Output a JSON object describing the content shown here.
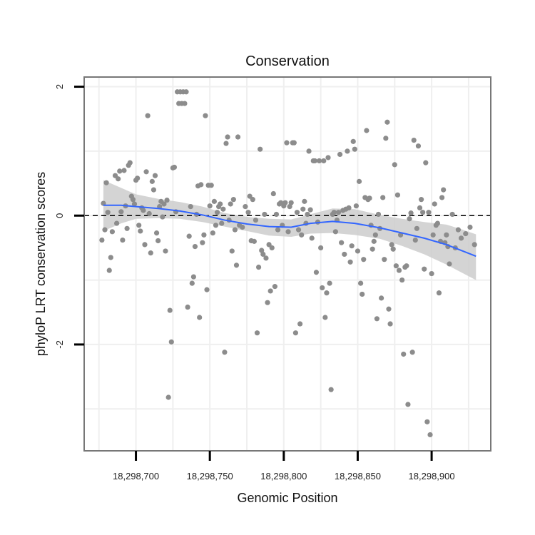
{
  "chart_data": {
    "type": "scatter",
    "title": "Conservation",
    "xlabel": "Genomic Position",
    "ylabel": "phyloP LRT conservation scores",
    "xlim": [
      18298665,
      18298940
    ],
    "ylim": [
      -3.65,
      2.15
    ],
    "x_ticks": [
      18298700,
      18298750,
      18298800,
      18298850,
      18298900
    ],
    "x_tick_labels": [
      "18,298,700",
      "18,298,750",
      "18,298,800",
      "18,298,850",
      "18,298,900"
    ],
    "y_ticks": [
      -2,
      0,
      2
    ],
    "y_tick_labels": [
      "-2",
      "0",
      "2"
    ],
    "grid": true,
    "reference_line": {
      "y": 0,
      "style": "dashed"
    },
    "colors": {
      "points": "#8c8c8c",
      "smooth_line": "#3366ff",
      "confidence_band": "#cccccc",
      "panel_border": "#777777",
      "grid": "#efefef"
    },
    "smooth": {
      "x": [
        18298678,
        18298690,
        18298700,
        18298715,
        18298730,
        18298745,
        18298760,
        18298775,
        18298790,
        18298805,
        18298818,
        18298833,
        18298848,
        18298865,
        18298880,
        18298895,
        18298910,
        18298920,
        18298930
      ],
      "y": [
        0.16,
        0.16,
        0.14,
        0.11,
        0.07,
        0.01,
        -0.07,
        -0.13,
        -0.17,
        -0.18,
        -0.12,
        -0.09,
        -0.12,
        -0.19,
        -0.27,
        -0.35,
        -0.45,
        -0.54,
        -0.63
      ],
      "lower": [
        -0.24,
        -0.12,
        -0.05,
        -0.04,
        -0.05,
        -0.1,
        -0.17,
        -0.24,
        -0.31,
        -0.33,
        -0.28,
        -0.27,
        -0.3,
        -0.36,
        -0.47,
        -0.6,
        -0.76,
        -0.88,
        -1.0
      ],
      "upper": [
        0.55,
        0.43,
        0.33,
        0.26,
        0.21,
        0.14,
        0.04,
        -0.02,
        -0.05,
        -0.06,
        0.02,
        0.11,
        0.1,
        0.01,
        -0.05,
        -0.1,
        -0.14,
        -0.21,
        -0.29
      ]
    },
    "points": [
      [
        18298677,
        -0.38
      ],
      [
        18298678,
        0.19
      ],
      [
        18298679,
        -0.22
      ],
      [
        18298680,
        0.51
      ],
      [
        18298681,
        0.05
      ],
      [
        18298682,
        -0.85
      ],
      [
        18298683,
        -0.65
      ],
      [
        18298684,
        -0.25
      ],
      [
        18298686,
        0.62
      ],
      [
        18298687,
        -0.12
      ],
      [
        18298688,
        0.57
      ],
      [
        18298689,
        0.69
      ],
      [
        18298690,
        0.06
      ],
      [
        18298691,
        -0.38
      ],
      [
        18298692,
        0.7
      ],
      [
        18298693,
        0.15
      ],
      [
        18298694,
        -0.2
      ],
      [
        18298695,
        0.78
      ],
      [
        18298696,
        0.82
      ],
      [
        18298697,
        0.3
      ],
      [
        18298698,
        0.25
      ],
      [
        18298699,
        0.18
      ],
      [
        18298700,
        0.55
      ],
      [
        18298701,
        0.58
      ],
      [
        18298702,
        -0.15
      ],
      [
        18298703,
        -0.24
      ],
      [
        18298704,
        0.12
      ],
      [
        18298705,
        0.08
      ],
      [
        18298706,
        -0.45
      ],
      [
        18298707,
        0.68
      ],
      [
        18298708,
        1.55
      ],
      [
        18298709,
        0.03
      ],
      [
        18298710,
        -0.58
      ],
      [
        18298711,
        0.53
      ],
      [
        18298712,
        0.4
      ],
      [
        18298713,
        0.62
      ],
      [
        18298714,
        -0.27
      ],
      [
        18298715,
        -0.39
      ],
      [
        18298716,
        0.14
      ],
      [
        18298717,
        0.22
      ],
      [
        18298718,
        -0.02
      ],
      [
        18298719,
        0.18
      ],
      [
        18298720,
        -0.55
      ],
      [
        18298721,
        0.24
      ],
      [
        18298722,
        -2.82
      ],
      [
        18298723,
        -1.47
      ],
      [
        18298724,
        -1.96
      ],
      [
        18298725,
        0.74
      ],
      [
        18298726,
        0.75
      ],
      [
        18298727,
        0.06
      ],
      [
        18298728,
        1.92
      ],
      [
        18298729,
        1.74
      ],
      [
        18298730,
        1.92
      ],
      [
        18298731,
        1.74
      ],
      [
        18298732,
        1.92
      ],
      [
        18298733,
        1.74
      ],
      [
        18298734,
        1.92
      ],
      [
        18298735,
        -1.42
      ],
      [
        18298736,
        -0.32
      ],
      [
        18298737,
        0.14
      ],
      [
        18298738,
        -1.05
      ],
      [
        18298739,
        -0.95
      ],
      [
        18298740,
        -0.48
      ],
      [
        18298741,
        0.02
      ],
      [
        18298742,
        0.46
      ],
      [
        18298743,
        -1.58
      ],
      [
        18298744,
        0.48
      ],
      [
        18298745,
        -0.42
      ],
      [
        18298746,
        -0.3
      ],
      [
        18298747,
        1.55
      ],
      [
        18298748,
        -1.15
      ],
      [
        18298749,
        0.47
      ],
      [
        18298750,
        0.15
      ],
      [
        18298751,
        0.47
      ],
      [
        18298752,
        -0.27
      ],
      [
        18298753,
        0.22
      ],
      [
        18298754,
        -0.15
      ],
      [
        18298755,
        0.05
      ],
      [
        18298756,
        0.14
      ],
      [
        18298757,
        0.18
      ],
      [
        18298758,
        -0.12
      ],
      [
        18298759,
        0.1
      ],
      [
        18298760,
        -2.12
      ],
      [
        18298761,
        1.12
      ],
      [
        18298762,
        1.22
      ],
      [
        18298763,
        -0.07
      ],
      [
        18298764,
        0.18
      ],
      [
        18298765,
        -0.55
      ],
      [
        18298766,
        0.25
      ],
      [
        18298767,
        -0.22
      ],
      [
        18298768,
        -0.77
      ],
      [
        18298769,
        1.22
      ],
      [
        18298770,
        -0.15
      ],
      [
        18298772,
        -0.18
      ],
      [
        18298774,
        0.14
      ],
      [
        18298776,
        0.05
      ],
      [
        18298777,
        0.3
      ],
      [
        18298778,
        -0.39
      ],
      [
        18298779,
        0.25
      ],
      [
        18298780,
        -0.4
      ],
      [
        18298781,
        -0.07
      ],
      [
        18298782,
        -1.82
      ],
      [
        18298783,
        -0.8
      ],
      [
        18298784,
        1.03
      ],
      [
        18298785,
        -0.54
      ],
      [
        18298786,
        -0.6
      ],
      [
        18298787,
        0.02
      ],
      [
        18298788,
        -0.66
      ],
      [
        18298789,
        -1.35
      ],
      [
        18298790,
        -0.45
      ],
      [
        18298791,
        -1.17
      ],
      [
        18298792,
        -0.5
      ],
      [
        18298793,
        0.34
      ],
      [
        18298794,
        -1.1
      ],
      [
        18298795,
        0.02
      ],
      [
        18298796,
        -0.22
      ],
      [
        18298797,
        0.18
      ],
      [
        18298798,
        0.2
      ],
      [
        18298799,
        -0.15
      ],
      [
        18298800,
        0.15
      ],
      [
        18298801,
        0.2
      ],
      [
        18298802,
        1.13
      ],
      [
        18298803,
        -0.25
      ],
      [
        18298804,
        0.14
      ],
      [
        18298805,
        0.2
      ],
      [
        18298806,
        1.13
      ],
      [
        18298807,
        1.13
      ],
      [
        18298808,
        -1.82
      ],
      [
        18298809,
        0.05
      ],
      [
        18298810,
        -0.22
      ],
      [
        18298811,
        -1.68
      ],
      [
        18298812,
        -0.3
      ],
      [
        18298813,
        0.1
      ],
      [
        18298814,
        0.22
      ],
      [
        18298815,
        -0.12
      ],
      [
        18298816,
        0.02
      ],
      [
        18298817,
        1.0
      ],
      [
        18298818,
        0.09
      ],
      [
        18298819,
        -0.35
      ],
      [
        18298820,
        0.85
      ],
      [
        18298821,
        0.85
      ],
      [
        18298822,
        -0.88
      ],
      [
        18298823,
        -0.1
      ],
      [
        18298824,
        0.85
      ],
      [
        18298825,
        -0.5
      ],
      [
        18298826,
        -1.12
      ],
      [
        18298827,
        0.85
      ],
      [
        18298828,
        -1.58
      ],
      [
        18298829,
        -1.2
      ],
      [
        18298830,
        0.9
      ],
      [
        18298831,
        -1.05
      ],
      [
        18298832,
        -2.7
      ],
      [
        18298833,
        0.02
      ],
      [
        18298834,
        0.05
      ],
      [
        18298835,
        -0.25
      ],
      [
        18298836,
        -0.07
      ],
      [
        18298837,
        0.05
      ],
      [
        18298838,
        0.95
      ],
      [
        18298839,
        -0.42
      ],
      [
        18298840,
        0.08
      ],
      [
        18298841,
        -0.6
      ],
      [
        18298842,
        0.1
      ],
      [
        18298843,
        1.0
      ],
      [
        18298844,
        0.12
      ],
      [
        18298845,
        -0.72
      ],
      [
        18298846,
        -0.47
      ],
      [
        18298847,
        1.15
      ],
      [
        18298848,
        1.03
      ],
      [
        18298849,
        0.15
      ],
      [
        18298850,
        -0.55
      ],
      [
        18298851,
        0.53
      ],
      [
        18298852,
        -1.05
      ],
      [
        18298853,
        -1.22
      ],
      [
        18298854,
        -0.68
      ],
      [
        18298855,
        0.28
      ],
      [
        18298856,
        1.32
      ],
      [
        18298857,
        0.25
      ],
      [
        18298858,
        0.27
      ],
      [
        18298859,
        -0.15
      ],
      [
        18298860,
        -0.52
      ],
      [
        18298861,
        -0.4
      ],
      [
        18298862,
        -0.3
      ],
      [
        18298863,
        -1.6
      ],
      [
        18298864,
        0.02
      ],
      [
        18298865,
        -0.2
      ],
      [
        18298866,
        -1.28
      ],
      [
        18298867,
        0.28
      ],
      [
        18298868,
        -0.68
      ],
      [
        18298869,
        1.2
      ],
      [
        18298870,
        1.45
      ],
      [
        18298871,
        -1.45
      ],
      [
        18298872,
        -1.68
      ],
      [
        18298873,
        -0.45
      ],
      [
        18298874,
        -0.52
      ],
      [
        18298875,
        0.79
      ],
      [
        18298876,
        -0.78
      ],
      [
        18298877,
        0.32
      ],
      [
        18298878,
        -0.85
      ],
      [
        18298879,
        -0.3
      ],
      [
        18298880,
        -1.0
      ],
      [
        18298881,
        -2.15
      ],
      [
        18298882,
        -0.8
      ],
      [
        18298883,
        -0.78
      ],
      [
        18298884,
        -2.93
      ],
      [
        18298885,
        -0.05
      ],
      [
        18298886,
        0.04
      ],
      [
        18298887,
        -2.12
      ],
      [
        18298888,
        1.17
      ],
      [
        18298889,
        -0.38
      ],
      [
        18298890,
        -0.2
      ],
      [
        18298891,
        1.08
      ],
      [
        18298892,
        0.12
      ],
      [
        18298893,
        0.25
      ],
      [
        18298894,
        0.05
      ],
      [
        18298895,
        -0.83
      ],
      [
        18298896,
        0.82
      ],
      [
        18298897,
        -3.2
      ],
      [
        18298898,
        0.05
      ],
      [
        18298899,
        -3.4
      ],
      [
        18298900,
        -0.9
      ],
      [
        18298901,
        -0.3
      ],
      [
        18298902,
        0.18
      ],
      [
        18298903,
        -0.15
      ],
      [
        18298904,
        -0.12
      ],
      [
        18298905,
        -1.2
      ],
      [
        18298906,
        -0.4
      ],
      [
        18298907,
        0.28
      ],
      [
        18298908,
        0.4
      ],
      [
        18298909,
        -0.42
      ],
      [
        18298910,
        -0.3
      ],
      [
        18298911,
        -0.48
      ],
      [
        18298912,
        -0.75
      ],
      [
        18298914,
        0.02
      ],
      [
        18298916,
        -0.5
      ],
      [
        18298918,
        -0.22
      ],
      [
        18298920,
        -0.35
      ],
      [
        18298923,
        -0.28
      ],
      [
        18298926,
        -0.18
      ],
      [
        18298929,
        -0.45
      ]
    ]
  }
}
